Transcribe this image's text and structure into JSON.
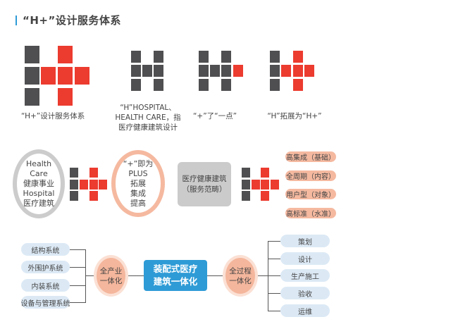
{
  "title": "“H+”设计服务体系",
  "colors": {
    "accent_blue": "#2e9bd6",
    "logo_gray": "#4f4f51",
    "logo_red": "#ec3b2f",
    "salmon": "#f5b9a0",
    "light_blue": "#dce9f5",
    "ring_gray": "#cccccc"
  },
  "logos": [
    {
      "caption": [
        "“H+”设计服务体系"
      ]
    },
    {
      "caption": [
        "“H”HOSPITAL、",
        "HEALTH CARE，指",
        "医疗健康建筑设计"
      ]
    },
    {
      "caption": [
        "“+”了“一点”"
      ]
    },
    {
      "caption": [
        "“H”拓展为“H+”"
      ]
    }
  ],
  "concept": {
    "h_circle": [
      "Health Care",
      "健康事业",
      "Hospital",
      "医疗建筑"
    ],
    "plus_circle": [
      "“+”即为",
      "PLUS",
      "拓展",
      "集成",
      "提高"
    ],
    "scope_box": [
      "医疗健康建筑",
      "（服务范畴）"
    ],
    "attributes": [
      "高集成（基础）",
      "全周期（内容）",
      "用户型（对象）",
      "高标准（水准）"
    ]
  },
  "integration": {
    "left_items": [
      "结构系统",
      "外围护系统",
      "内装系统",
      "设备与管理系统"
    ],
    "left_hub": [
      "全产业",
      "一体化"
    ],
    "center": [
      "装配式医疗",
      "建筑一体化"
    ],
    "right_hub": [
      "全过程",
      "一体化"
    ],
    "right_items": [
      "策划",
      "设计",
      "生产施工",
      "验收",
      "运维"
    ]
  }
}
